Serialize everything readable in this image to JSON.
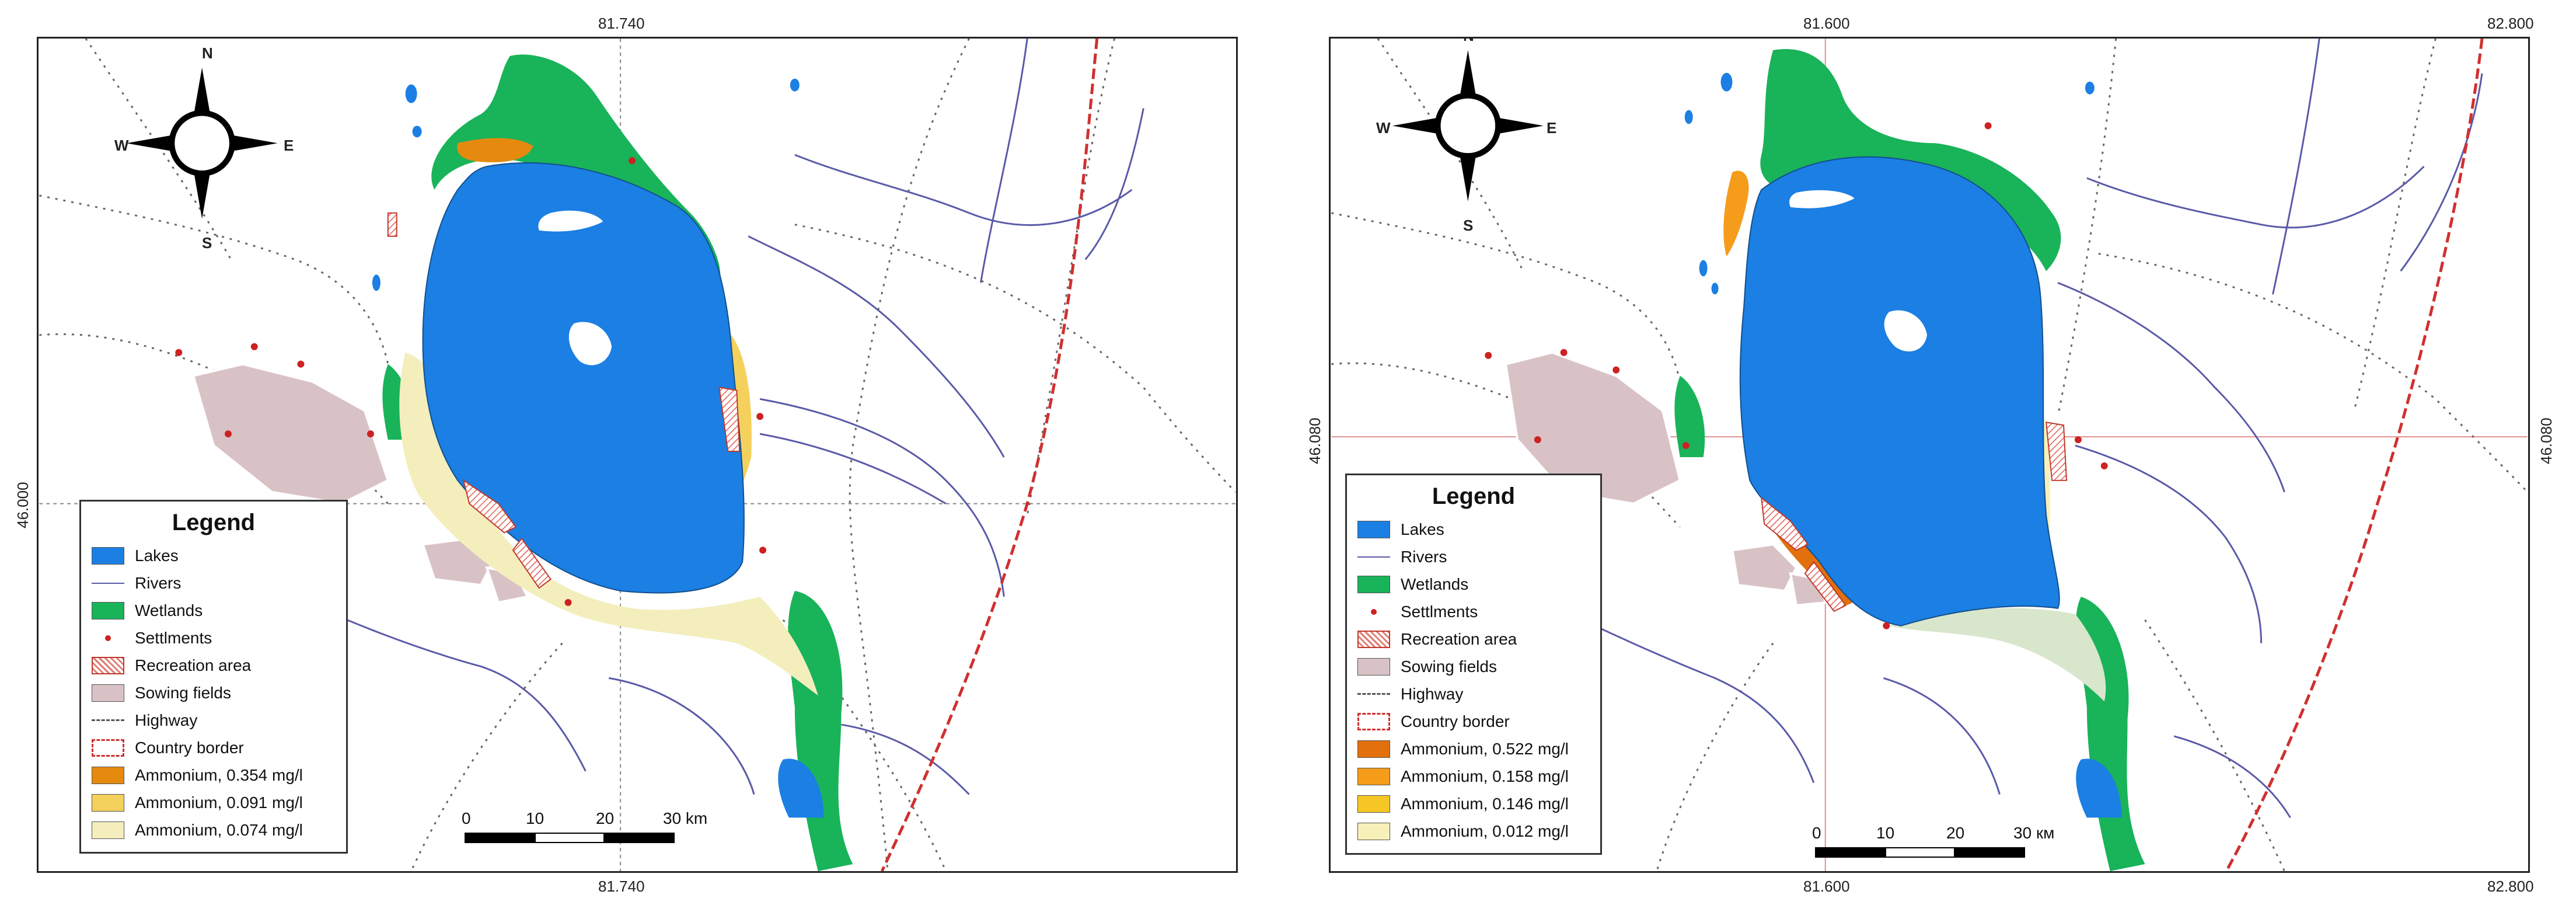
{
  "maps": [
    {
      "ticks": {
        "top": "81.740",
        "bottom": "81.740",
        "left": "46.000",
        "right": ""
      },
      "compass": {
        "n": "N",
        "s": "S",
        "e": "E",
        "w": "W"
      },
      "legend": {
        "title": "Legend",
        "items": [
          {
            "label": "Lakes",
            "swatch": "fill",
            "color": "#1b7fe3"
          },
          {
            "label": "Rivers",
            "swatch": "line",
            "color": "#5a5aa8"
          },
          {
            "label": "Wetlands",
            "swatch": "fill",
            "color": "#19b35a"
          },
          {
            "label": "Settlments",
            "swatch": "dot",
            "color": "#cc2222"
          },
          {
            "label": "Recreation area",
            "swatch": "hatch",
            "color": "#c0392b"
          },
          {
            "label": "Sowing fields",
            "swatch": "fill",
            "color": "#d9c2c6"
          },
          {
            "label": "Highway",
            "swatch": "dash",
            "color": "#555555"
          },
          {
            "label": "Country border",
            "swatch": "border",
            "color": "#d03030"
          },
          {
            "label": "Ammonium, 0.354 mg/l",
            "swatch": "fill",
            "color": "#e58a0f"
          },
          {
            "label": "Ammonium, 0.091 mg/l",
            "swatch": "fill",
            "color": "#f4d15c"
          },
          {
            "label": "Ammonium, 0.074 mg/l",
            "swatch": "fill",
            "color": "#f3eebc"
          }
        ]
      },
      "scale": {
        "labels": [
          "0",
          "10",
          "20",
          "30 km"
        ]
      }
    },
    {
      "ticks": {
        "top": "81.600",
        "top_right": "82.800",
        "bottom": "81.600",
        "bottom_right": "82.800",
        "left": "46.080",
        "right": "46.080"
      },
      "compass": {
        "n": "N",
        "s": "S",
        "e": "E",
        "w": "W"
      },
      "legend": {
        "title": "Legend",
        "items": [
          {
            "label": "Lakes",
            "swatch": "fill",
            "color": "#1b7fe3"
          },
          {
            "label": "Rivers",
            "swatch": "line",
            "color": "#5a5aa8"
          },
          {
            "label": "Wetlands",
            "swatch": "fill",
            "color": "#19b35a"
          },
          {
            "label": "Settlments",
            "swatch": "dot",
            "color": "#cc2222"
          },
          {
            "label": "Recreation area",
            "swatch": "hatch",
            "color": "#c0392b"
          },
          {
            "label": "Sowing fields",
            "swatch": "fill",
            "color": "#d9c2c6"
          },
          {
            "label": "Highway",
            "swatch": "dash",
            "color": "#555555"
          },
          {
            "label": "Country border",
            "swatch": "border",
            "color": "#d03030"
          },
          {
            "label": "Ammonium, 0.522 mg/l",
            "swatch": "fill",
            "color": "#e2700c"
          },
          {
            "label": "Ammonium, 0.158 mg/l",
            "swatch": "fill",
            "color": "#f59c1a"
          },
          {
            "label": "Ammonium, 0.146 mg/l",
            "swatch": "fill",
            "color": "#f6c724"
          },
          {
            "label": "Ammonium, 0.012 mg/l",
            "swatch": "fill",
            "color": "#f7f0b8"
          }
        ]
      },
      "scale": {
        "labels": [
          "0",
          "10",
          "20",
          "30 км"
        ]
      }
    }
  ]
}
